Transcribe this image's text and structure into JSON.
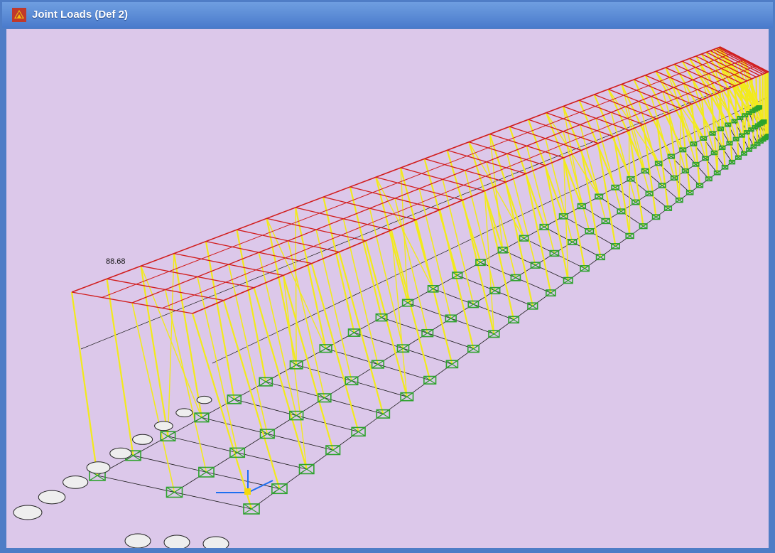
{
  "window": {
    "title": "Joint Loads (Def 2)",
    "icon": "sap-app-icon"
  },
  "viewport": {
    "background": "#dcc8ea",
    "view": "3D",
    "load_label": "88.68",
    "colors": {
      "roof": "#d11c1c",
      "columns": "#f2ea1c",
      "bracing": "#1a1a1a",
      "supports": "#2da32d",
      "axis": "#1d6ff0"
    }
  }
}
